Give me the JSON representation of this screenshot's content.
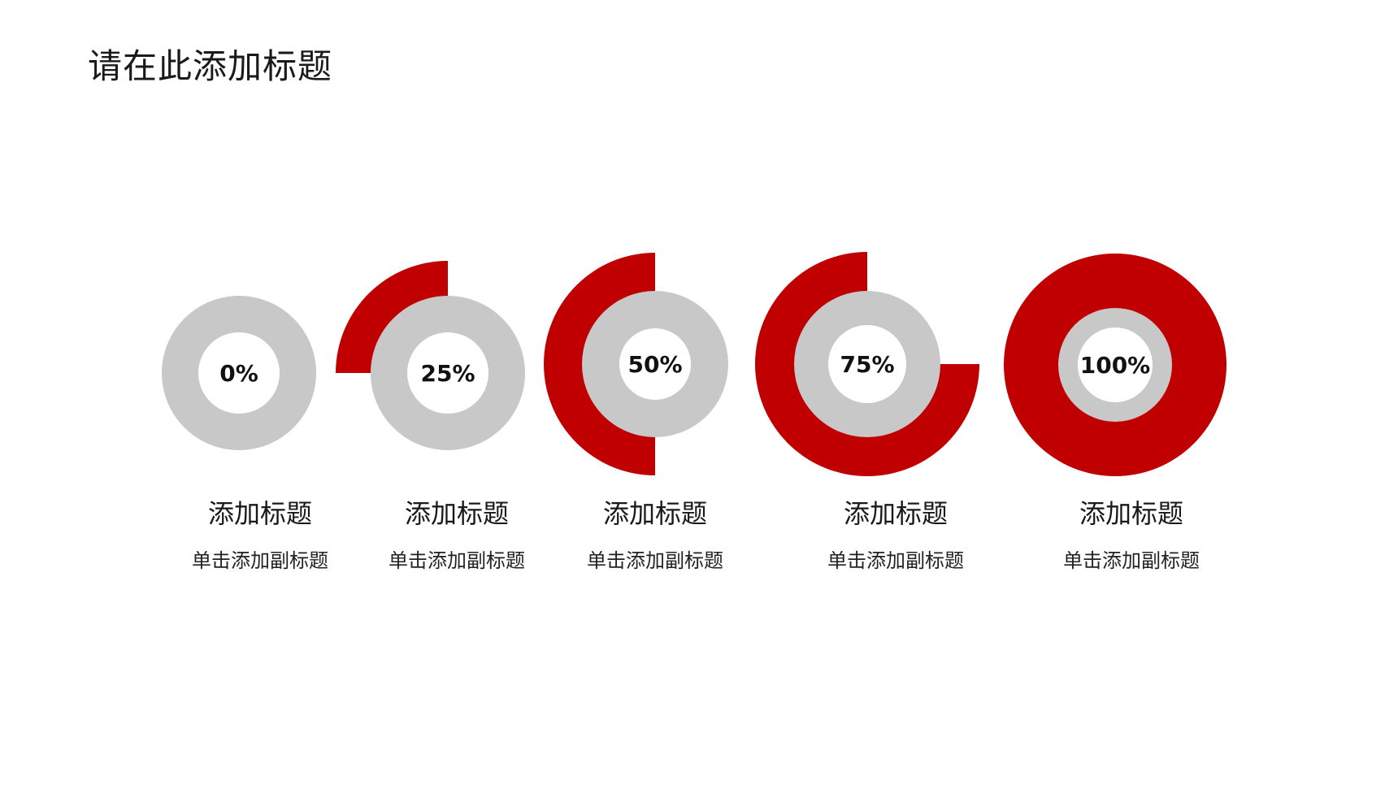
{
  "slide": {
    "title": "请在此添加标题"
  },
  "colors": {
    "accent": "#c00000",
    "track": "#c8c8c8",
    "hole": "#ffffff"
  },
  "chart_data": {
    "type": "donut-progress",
    "title": "请在此添加标题",
    "value_unit": "%",
    "items": [
      {
        "value": 0,
        "label": "0%",
        "title": "添加标题",
        "subtitle": "单击添加副标题"
      },
      {
        "value": 25,
        "label": "25%",
        "title": "添加标题",
        "subtitle": "单击添加副标题"
      },
      {
        "value": 50,
        "label": "50%",
        "title": "添加标题",
        "subtitle": "单击添加副标题"
      },
      {
        "value": 75,
        "label": "75%",
        "title": "添加标题",
        "subtitle": "单击添加副标题"
      },
      {
        "value": 100,
        "label": "100%",
        "title": "添加标题",
        "subtitle": "单击添加副标题"
      }
    ]
  }
}
